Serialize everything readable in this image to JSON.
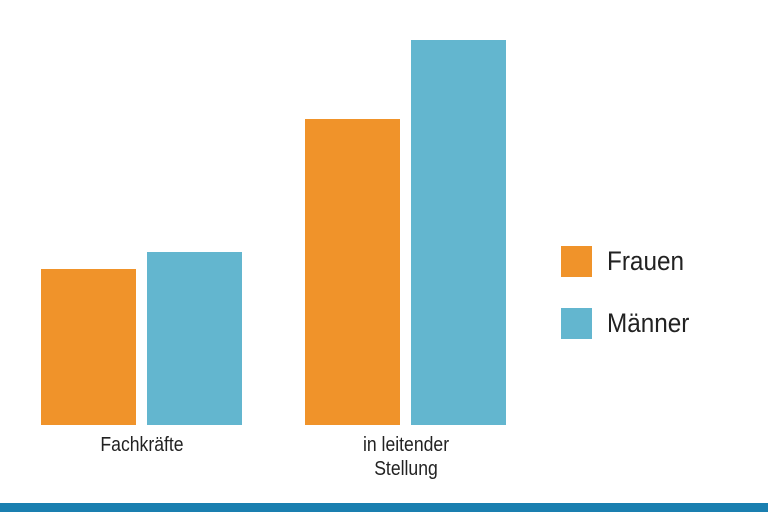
{
  "chart_data": {
    "type": "bar",
    "categories": [
      "Fachkräfte",
      "in leitender Stellung"
    ],
    "series": [
      {
        "name": "Frauen",
        "color": "#f0932a",
        "values": [
          156,
          306
        ]
      },
      {
        "name": "Männer",
        "color": "#63b6cf",
        "values": [
          173,
          385
        ]
      }
    ]
  }
}
